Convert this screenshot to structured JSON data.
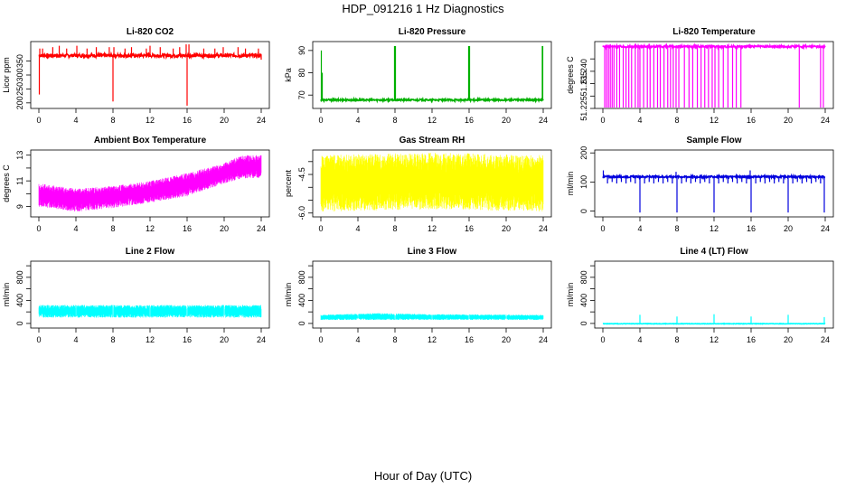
{
  "page": {
    "title": "HDP_091216 1 Hz Diagnostics",
    "x_caption": "Hour of Day (UTC)"
  },
  "chart_data": [
    {
      "type": "line",
      "title": "Li-820 CO2",
      "ylabel": "Licor ppm",
      "color": "#ff0000",
      "pattern": "spikes",
      "base": 370,
      "noise": 6,
      "xlim": [
        0,
        24
      ],
      "ylim": [
        180,
        420
      ],
      "x_ticks": [
        0,
        4,
        8,
        12,
        16,
        20,
        24
      ],
      "x_tick_labels": [
        "0",
        "4",
        "8",
        "12",
        "16",
        "20",
        "24"
      ],
      "y_ticks": [
        200,
        250,
        300,
        350
      ],
      "y_tick_labels": [
        "200",
        "250",
        "300",
        "350"
      ],
      "spikes": [
        [
          0.05,
          230
        ],
        [
          0.1,
          395
        ],
        [
          0.4,
          395
        ],
        [
          1.5,
          400
        ],
        [
          2.2,
          405
        ],
        [
          3.0,
          395
        ],
        [
          4.1,
          405
        ],
        [
          5.2,
          395
        ],
        [
          6.2,
          400
        ],
        [
          7.6,
          400
        ],
        [
          8.0,
          205
        ],
        [
          8.1,
          400
        ],
        [
          9.3,
          395
        ],
        [
          10.0,
          400
        ],
        [
          11.6,
          395
        ],
        [
          12.0,
          405
        ],
        [
          13.1,
          400
        ],
        [
          14.5,
          395
        ],
        [
          15.2,
          400
        ],
        [
          15.9,
          410
        ],
        [
          16.0,
          190
        ],
        [
          16.2,
          410
        ],
        [
          17.8,
          395
        ],
        [
          19.0,
          395
        ],
        [
          19.9,
          400
        ],
        [
          21.5,
          400
        ],
        [
          22.3,
          395
        ],
        [
          23.7,
          395
        ],
        [
          24.0,
          355
        ]
      ]
    },
    {
      "type": "line",
      "title": "Li-820 Pressure",
      "ylabel": "kPa",
      "color": "#00b000",
      "pattern": "spikes",
      "base": 67.8,
      "noise": 0.4,
      "xlim": [
        0,
        24
      ],
      "ylim": [
        64,
        94
      ],
      "x_ticks": [
        0,
        4,
        8,
        12,
        16,
        20,
        24
      ],
      "x_tick_labels": [
        "0",
        "4",
        "8",
        "12",
        "16",
        "20",
        "24"
      ],
      "y_ticks": [
        70,
        80,
        90
      ],
      "y_tick_labels": [
        "70",
        "80",
        "90"
      ],
      "spikes": [
        [
          0.05,
          90
        ],
        [
          0.15,
          80
        ],
        [
          7.95,
          92
        ],
        [
          8.05,
          92
        ],
        [
          15.95,
          92
        ],
        [
          16.05,
          92
        ],
        [
          23.9,
          92
        ],
        [
          23.95,
          92
        ]
      ]
    },
    {
      "type": "line",
      "title": "Li-820 Temperature",
      "ylabel": "degrees C",
      "color": "#ff00ff",
      "pattern": "drops",
      "base": 51.25,
      "noise": 0.0004,
      "xlim": [
        0,
        24
      ],
      "ylim": [
        51.225,
        51.252
      ],
      "x_ticks": [
        0,
        4,
        8,
        12,
        16,
        20,
        24
      ],
      "x_tick_labels": [
        "0",
        "4",
        "8",
        "12",
        "16",
        "20",
        "24"
      ],
      "y_ticks": [
        51.225,
        51.23,
        51.235,
        51.24,
        51.245
      ],
      "y_tick_labels": [
        "51.225",
        "",
        "51.235",
        "51.240",
        ""
      ],
      "spikes": [
        [
          0.2,
          51.22
        ],
        [
          0.4,
          51.22
        ],
        [
          0.6,
          51.22
        ],
        [
          0.8,
          51.22
        ],
        [
          1.0,
          51.22
        ],
        [
          1.2,
          51.22
        ],
        [
          1.5,
          51.22
        ],
        [
          1.8,
          51.22
        ],
        [
          2.2,
          51.22
        ],
        [
          2.5,
          51.22
        ],
        [
          2.8,
          51.22
        ],
        [
          3.1,
          51.22
        ],
        [
          3.5,
          51.22
        ],
        [
          3.8,
          51.22
        ],
        [
          4.0,
          51.22
        ],
        [
          4.4,
          51.22
        ],
        [
          4.8,
          51.22
        ],
        [
          5.1,
          51.22
        ],
        [
          5.5,
          51.22
        ],
        [
          5.9,
          51.22
        ],
        [
          6.2,
          51.22
        ],
        [
          6.6,
          51.22
        ],
        [
          7.0,
          51.22
        ],
        [
          7.3,
          51.22
        ],
        [
          7.6,
          51.22
        ],
        [
          7.9,
          51.22
        ],
        [
          8.2,
          51.22
        ],
        [
          8.8,
          51.22
        ],
        [
          9.3,
          51.22
        ],
        [
          9.7,
          51.22
        ],
        [
          10.2,
          51.22
        ],
        [
          10.6,
          51.22
        ],
        [
          11.0,
          51.22
        ],
        [
          11.4,
          51.22
        ],
        [
          11.8,
          51.22
        ],
        [
          12.1,
          51.22
        ],
        [
          12.5,
          51.22
        ],
        [
          13.0,
          51.22
        ],
        [
          13.5,
          51.22
        ],
        [
          14.0,
          51.22
        ],
        [
          14.4,
          51.22
        ],
        [
          14.9,
          51.22
        ],
        [
          21.2,
          51.22
        ],
        [
          23.5,
          51.22
        ],
        [
          23.8,
          51.22
        ]
      ]
    },
    {
      "type": "line",
      "title": "Ambient Box Temperature",
      "ylabel": "degrees C",
      "color": "#ff00ff",
      "pattern": "band",
      "band_lo": [
        [
          0,
          9.0
        ],
        [
          4,
          8.6
        ],
        [
          8,
          8.9
        ],
        [
          12,
          9.3
        ],
        [
          16,
          9.8
        ],
        [
          20,
          10.8
        ],
        [
          22,
          11.2
        ],
        [
          24,
          11.2
        ]
      ],
      "band_hi": [
        [
          0,
          10.8
        ],
        [
          4,
          10.4
        ],
        [
          8,
          10.6
        ],
        [
          12,
          11.0
        ],
        [
          16,
          11.6
        ],
        [
          20,
          12.4
        ],
        [
          22,
          13.0
        ],
        [
          24,
          13.0
        ]
      ],
      "xlim": [
        0,
        24
      ],
      "ylim": [
        8.2,
        13.4
      ],
      "x_ticks": [
        0,
        4,
        8,
        12,
        16,
        20,
        24
      ],
      "x_tick_labels": [
        "0",
        "4",
        "8",
        "12",
        "16",
        "20",
        "24"
      ],
      "y_ticks": [
        9,
        10,
        11,
        12,
        13
      ],
      "y_tick_labels": [
        "9",
        "",
        "11",
        "",
        "13"
      ]
    },
    {
      "type": "line",
      "title": "Gas Stream RH",
      "ylabel": "percent",
      "color": "#ffff00",
      "pattern": "band",
      "band_lo": [
        [
          0,
          -5.95
        ],
        [
          12,
          -5.85
        ],
        [
          24,
          -5.95
        ]
      ],
      "band_hi": [
        [
          0,
          -3.75
        ],
        [
          12,
          -3.65
        ],
        [
          24,
          -3.75
        ]
      ],
      "xlim": [
        0,
        24
      ],
      "ylim": [
        -6.15,
        -3.55
      ],
      "x_ticks": [
        0,
        4,
        8,
        12,
        16,
        20,
        24
      ],
      "x_tick_labels": [
        "0",
        "4",
        "8",
        "12",
        "16",
        "20",
        "24"
      ],
      "y_ticks": [
        -6.0,
        -5.5,
        -5.0,
        -4.5,
        -4.0
      ],
      "y_tick_labels": [
        "-6.0",
        "",
        "",
        "-4.5",
        ""
      ]
    },
    {
      "type": "line",
      "title": "Sample Flow",
      "ylabel": "ml/min",
      "color": "#0000dd",
      "pattern": "spikes",
      "base": 118,
      "noise": 3,
      "xlim": [
        0,
        24
      ],
      "ylim": [
        -20,
        210
      ],
      "x_ticks": [
        0,
        4,
        8,
        12,
        16,
        20,
        24
      ],
      "x_tick_labels": [
        "0",
        "4",
        "8",
        "12",
        "16",
        "20",
        "24"
      ],
      "y_ticks": [
        0,
        100,
        200
      ],
      "y_tick_labels": [
        "0",
        "100",
        "200"
      ],
      "spikes": [
        [
          0.05,
          140
        ],
        [
          0.5,
          95
        ],
        [
          1.0,
          100
        ],
        [
          1.5,
          95
        ],
        [
          2.0,
          100
        ],
        [
          2.5,
          95
        ],
        [
          3.0,
          100
        ],
        [
          3.5,
          95
        ],
        [
          4.0,
          -5
        ],
        [
          4.5,
          95
        ],
        [
          5.0,
          100
        ],
        [
          5.5,
          95
        ],
        [
          6.0,
          100
        ],
        [
          6.5,
          95
        ],
        [
          7.0,
          100
        ],
        [
          7.5,
          95
        ],
        [
          7.9,
          135
        ],
        [
          8.0,
          -5
        ],
        [
          8.5,
          95
        ],
        [
          9.0,
          100
        ],
        [
          9.5,
          95
        ],
        [
          10.0,
          100
        ],
        [
          10.5,
          95
        ],
        [
          11.0,
          100
        ],
        [
          11.5,
          95
        ],
        [
          12.0,
          -5
        ],
        [
          12.5,
          95
        ],
        [
          13.0,
          100
        ],
        [
          13.5,
          95
        ],
        [
          14.0,
          100
        ],
        [
          14.5,
          95
        ],
        [
          15.0,
          100
        ],
        [
          15.5,
          95
        ],
        [
          15.9,
          140
        ],
        [
          16.0,
          -5
        ],
        [
          16.5,
          95
        ],
        [
          17.0,
          100
        ],
        [
          17.5,
          95
        ],
        [
          18.0,
          100
        ],
        [
          18.5,
          95
        ],
        [
          19.0,
          100
        ],
        [
          19.5,
          95
        ],
        [
          20.0,
          -5
        ],
        [
          20.5,
          95
        ],
        [
          21.0,
          100
        ],
        [
          21.5,
          95
        ],
        [
          22.0,
          100
        ],
        [
          22.5,
          95
        ],
        [
          23.0,
          100
        ],
        [
          23.5,
          95
        ],
        [
          23.9,
          -5
        ]
      ]
    },
    {
      "type": "line",
      "title": "Line 2 Flow",
      "ylabel": "ml/min",
      "color": "#00ffff",
      "pattern": "band",
      "band_lo": [
        [
          0,
          100
        ],
        [
          24,
          100
        ]
      ],
      "band_hi": [
        [
          0,
          320
        ],
        [
          24,
          320
        ]
      ],
      "gaps": [
        4,
        8,
        12,
        16,
        20
      ],
      "xlim": [
        0,
        24
      ],
      "ylim": [
        -80,
        1080
      ],
      "x_ticks": [
        0,
        4,
        8,
        12,
        16,
        20,
        24
      ],
      "x_tick_labels": [
        "0",
        "4",
        "8",
        "12",
        "16",
        "20",
        "24"
      ],
      "y_ticks": [
        0,
        200,
        400,
        600,
        800,
        1000
      ],
      "y_tick_labels": [
        "0",
        "",
        "400",
        "",
        "800",
        ""
      ]
    },
    {
      "type": "line",
      "title": "Line 3 Flow",
      "ylabel": "ml/min",
      "color": "#00ffff",
      "pattern": "band",
      "band_lo": [
        [
          0,
          60
        ],
        [
          24,
          60
        ]
      ],
      "band_hi": [
        [
          0,
          150
        ],
        [
          6,
          180
        ],
        [
          12,
          160
        ],
        [
          24,
          150
        ]
      ],
      "gaps": [
        4,
        8,
        12,
        16,
        20
      ],
      "xlim": [
        0,
        24
      ],
      "ylim": [
        -80,
        1080
      ],
      "x_ticks": [
        0,
        4,
        8,
        12,
        16,
        20,
        24
      ],
      "x_tick_labels": [
        "0",
        "4",
        "8",
        "12",
        "16",
        "20",
        "24"
      ],
      "y_ticks": [
        0,
        200,
        400,
        600,
        800,
        1000
      ],
      "y_tick_labels": [
        "0",
        "",
        "400",
        "",
        "800",
        ""
      ]
    },
    {
      "type": "line",
      "title": "Line 4 (LT) Flow",
      "ylabel": "ml/min",
      "color": "#00ffff",
      "pattern": "spikes",
      "base": -5,
      "noise": 4,
      "xlim": [
        0,
        24
      ],
      "ylim": [
        -80,
        1080
      ],
      "x_ticks": [
        0,
        4,
        8,
        12,
        16,
        20,
        24
      ],
      "x_tick_labels": [
        "0",
        "4",
        "8",
        "12",
        "16",
        "20",
        "24"
      ],
      "y_ticks": [
        0,
        200,
        400,
        600,
        800,
        1000
      ],
      "y_tick_labels": [
        "0",
        "",
        "400",
        "",
        "800",
        ""
      ],
      "spikes": [
        [
          4.0,
          150
        ],
        [
          8.0,
          120
        ],
        [
          12.0,
          160
        ],
        [
          16.0,
          120
        ],
        [
          20.0,
          150
        ],
        [
          23.9,
          110
        ]
      ]
    }
  ]
}
